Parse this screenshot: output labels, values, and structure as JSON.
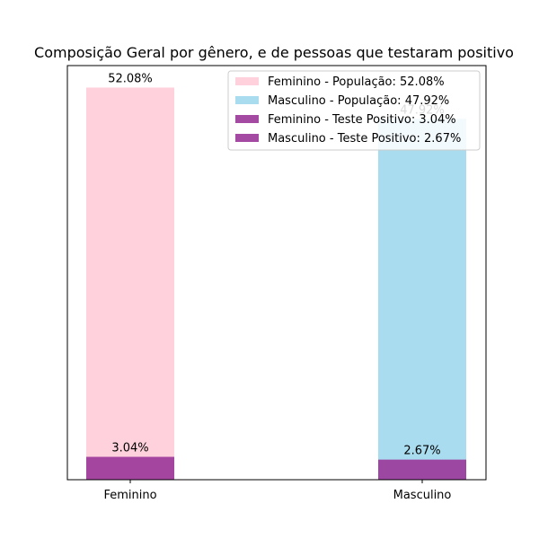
{
  "chart_data": {
    "type": "bar",
    "title": "Composição Geral por gênero, e de pessoas que testaram positivo",
    "xlabel": "",
    "ylabel": "",
    "categories": [
      "Feminino",
      "Masculino"
    ],
    "ylim": [
      0,
      55
    ],
    "grid": false,
    "legend_position": "top-right",
    "series": [
      {
        "name": "Feminino - População: 52.08%",
        "category": "Feminino",
        "value": 52.08,
        "label": "52.08%",
        "color": "#ffd1dc"
      },
      {
        "name": "Masculino - População: 47.92%",
        "category": "Masculino",
        "value": 47.92,
        "label": "47.92%",
        "color": "#a9dcee"
      },
      {
        "name": "Feminino - Teste Positivo: 3.04%",
        "category": "Feminino",
        "value": 3.04,
        "label": "3.04%",
        "color": "#9a3699"
      },
      {
        "name": "Masculino - Teste Positivo: 2.67%",
        "category": "Masculino",
        "value": 2.67,
        "label": "2.67%",
        "color": "#9a3699"
      }
    ]
  }
}
